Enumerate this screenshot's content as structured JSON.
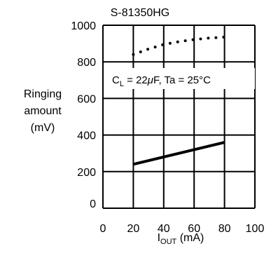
{
  "chart_data": {
    "type": "line",
    "title": "S-81350HG",
    "annotation": {
      "lines": [
        {
          "parts": [
            "C",
            "L",
            " = 22",
            "μ",
            "F,  Ta = 25°C"
          ]
        }
      ]
    },
    "xlabel": {
      "main": "I",
      "sub": "OUT",
      "unit": " (mA)"
    },
    "ylabel": [
      "Ringing",
      "amount",
      "(mV)"
    ],
    "xlim": [
      0,
      100
    ],
    "ylim": [
      0,
      1000
    ],
    "xticks": [
      0,
      20,
      40,
      60,
      80,
      100
    ],
    "yticks": [
      0,
      200,
      400,
      600,
      800,
      1000
    ],
    "grid": true,
    "series": [
      {
        "style": "solid",
        "x": [
          20,
          80
        ],
        "y": [
          240,
          360
        ]
      },
      {
        "style": "dotted",
        "x": [
          20,
          30,
          40,
          50,
          60,
          70,
          80
        ],
        "y": [
          840,
          870,
          895,
          910,
          922,
          930,
          935
        ]
      }
    ],
    "colors": {
      "line": "#000000",
      "grid": "#000000"
    }
  }
}
